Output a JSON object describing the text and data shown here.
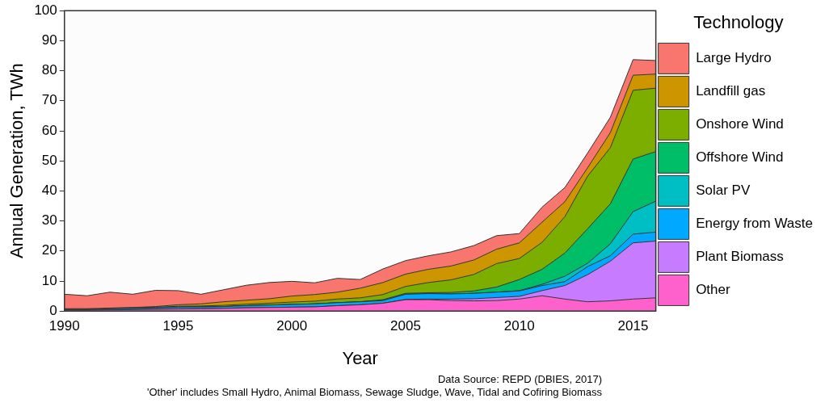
{
  "chart_data": {
    "type": "area",
    "stacked": true,
    "xlabel": "Year",
    "ylabel": "Annual Generation, TWh",
    "legend_title": "Technology",
    "legend": "right",
    "x": [
      1990,
      1991,
      1992,
      1993,
      1994,
      1995,
      1996,
      1997,
      1998,
      1999,
      2000,
      2001,
      2002,
      2003,
      2004,
      2005,
      2006,
      2007,
      2008,
      2009,
      2010,
      2011,
      2012,
      2013,
      2014,
      2015,
      2016
    ],
    "xlim": [
      1990,
      2016
    ],
    "xticks": [
      1990,
      1995,
      2000,
      2005,
      2010,
      2015
    ],
    "ylim": [
      0,
      100
    ],
    "yticks": [
      0,
      10,
      20,
      30,
      40,
      50,
      60,
      70,
      80,
      90,
      100
    ],
    "series": [
      {
        "name": "Other",
        "color": "#ff61cc",
        "values": [
          0.3,
          0.3,
          0.4,
          0.5,
          0.6,
          0.7,
          0.8,
          0.9,
          1.1,
          1.2,
          1.3,
          1.4,
          1.8,
          2.1,
          2.6,
          3.8,
          3.8,
          3.5,
          3.4,
          3.5,
          4.0,
          5.1,
          4.0,
          3.1,
          3.4,
          4.0,
          4.4
        ]
      },
      {
        "name": "Plant Biomass",
        "color": "#c77cff",
        "values": [
          0,
          0,
          0,
          0,
          0,
          0,
          0,
          0,
          0,
          0,
          0,
          0,
          0,
          0,
          0,
          0.1,
          0.2,
          0.5,
          0.7,
          1.0,
          0.9,
          1.7,
          4.5,
          9.0,
          13.2,
          18.7,
          18.9
        ]
      },
      {
        "name": "Energy from Waste",
        "color": "#00a9ff",
        "values": [
          0.2,
          0.2,
          0.4,
          0.4,
          0.5,
          0.6,
          0.6,
          0.6,
          0.7,
          0.8,
          0.9,
          1.0,
          1.0,
          1.0,
          0.9,
          1.7,
          1.8,
          1.7,
          1.8,
          1.8,
          1.8,
          1.7,
          1.3,
          2.7,
          1.8,
          2.9,
          3.0
        ]
      },
      {
        "name": "Solar PV",
        "color": "#00bfc4",
        "values": [
          0,
          0,
          0,
          0,
          0,
          0,
          0,
          0,
          0,
          0,
          0,
          0,
          0,
          0,
          0,
          0,
          0,
          0,
          0,
          0,
          0.1,
          0.4,
          1.8,
          1.1,
          4.0,
          7.5,
          10.3
        ]
      },
      {
        "name": "Offshore Wind",
        "color": "#00be67",
        "values": [
          0,
          0,
          0,
          0,
          0,
          0,
          0,
          0,
          0,
          0,
          0,
          0,
          0,
          0,
          0.3,
          0.3,
          0.3,
          0.5,
          0.8,
          1.7,
          3.7,
          5.0,
          7.7,
          11.5,
          13.3,
          17.5,
          16.5
        ]
      },
      {
        "name": "Onshore Wind",
        "color": "#7cae00",
        "values": [
          0,
          0,
          0.1,
          0.2,
          0.2,
          0.3,
          0.3,
          0.4,
          0.5,
          0.6,
          0.8,
          0.9,
          1.2,
          1.3,
          1.7,
          2.3,
          3.4,
          4.2,
          5.5,
          7.8,
          7.0,
          9.0,
          12.1,
          17.5,
          18.7,
          22.9,
          21.1
        ]
      },
      {
        "name": "Landfill gas",
        "color": "#cd9600",
        "values": [
          0.3,
          0.3,
          0.1,
          0.1,
          0.2,
          0.5,
          0.7,
          1.2,
          1.3,
          1.5,
          2.0,
          2.2,
          2.3,
          3.2,
          4.0,
          4.1,
          4.4,
          4.6,
          4.8,
          4.8,
          5.2,
          6.7,
          5.0,
          2.8,
          5.0,
          5.0,
          4.7
        ]
      },
      {
        "name": "Large Hydro",
        "color": "#f8766d",
        "values": [
          4.8,
          4.3,
          5.3,
          4.4,
          5.4,
          4.7,
          3.2,
          4.0,
          5.0,
          5.4,
          4.9,
          3.9,
          4.6,
          2.9,
          4.5,
          4.5,
          4.5,
          4.7,
          4.8,
          4.5,
          3.1,
          5.0,
          4.7,
          4.9,
          5.1,
          5.2,
          4.5
        ]
      }
    ],
    "annotations": [
      "Data Source: REPD (DBIES, 2017)",
      "'Other' includes Small Hydro, Animal Biomass, Sewage Sludge, Wave, Tidal and Cofiring Biomass"
    ]
  }
}
